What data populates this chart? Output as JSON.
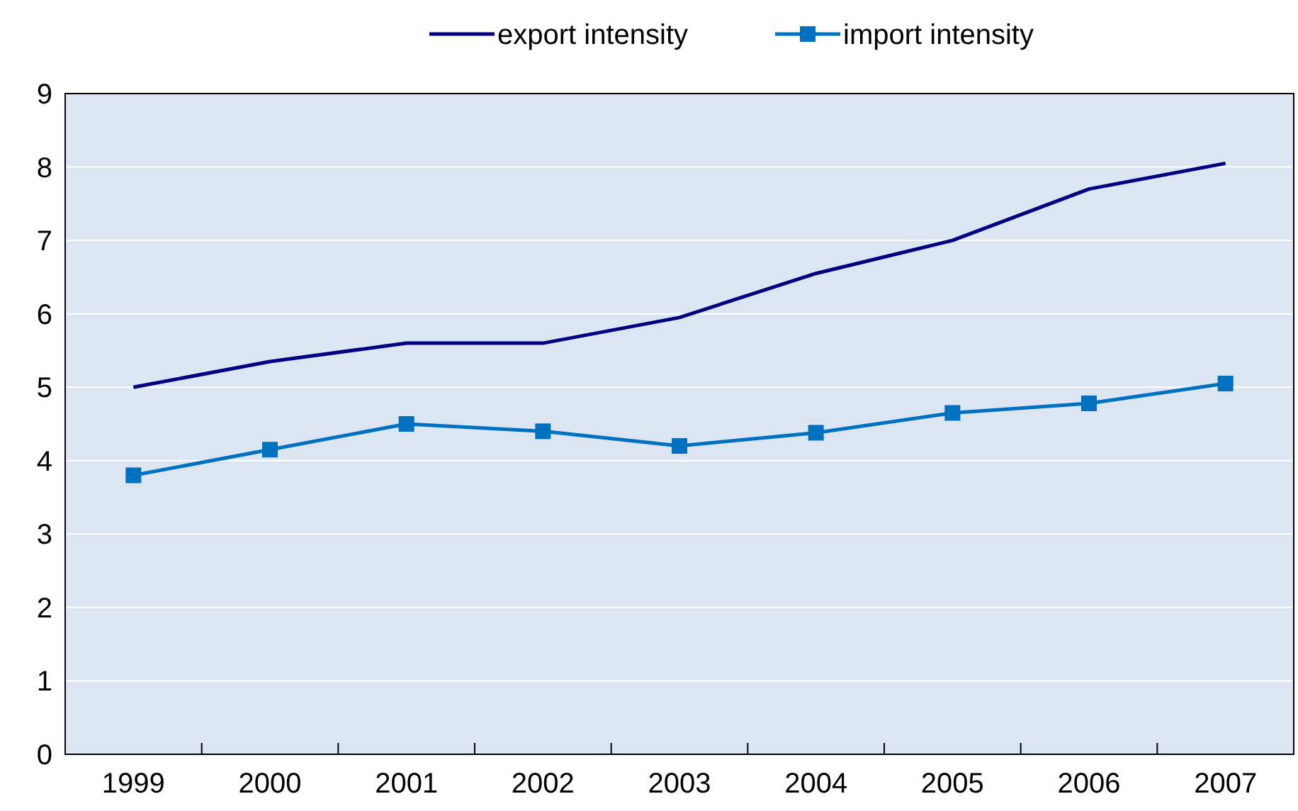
{
  "chart_data": {
    "type": "line",
    "categories": [
      "1999",
      "2000",
      "2001",
      "2002",
      "2003",
      "2004",
      "2005",
      "2006",
      "2007"
    ],
    "series": [
      {
        "name": "export intensity",
        "color": "#000080",
        "marker": "none",
        "values": [
          5.0,
          5.35,
          5.6,
          5.6,
          5.95,
          6.55,
          7.0,
          7.7,
          8.05
        ]
      },
      {
        "name": "import intensity",
        "color": "#0070c0",
        "marker": "square",
        "values": [
          3.8,
          4.15,
          4.5,
          4.4,
          4.2,
          4.38,
          4.65,
          4.78,
          5.05
        ]
      }
    ],
    "ylim": [
      0,
      9
    ],
    "yticks": [
      0,
      1,
      2,
      3,
      4,
      5,
      6,
      7,
      8,
      9
    ],
    "grid": "y",
    "legend": "top"
  }
}
